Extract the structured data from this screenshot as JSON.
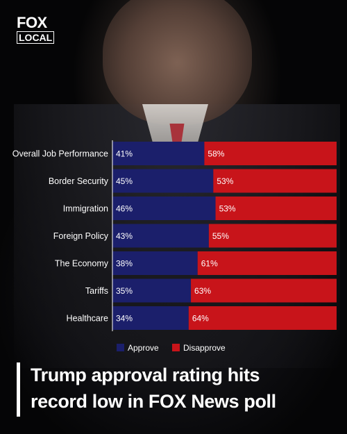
{
  "logo": {
    "line1": "FOX",
    "line2": "LOCAL"
  },
  "headline": {
    "line1": "Trump approval rating hits",
    "line2": "record low in FOX News poll"
  },
  "colors": {
    "approve": "#1b1f6b",
    "disapprove": "#c8141a",
    "text": "#ffffff"
  },
  "chart_data": {
    "type": "bar",
    "orientation": "horizontal",
    "stacked": true,
    "categories": [
      "Overall Job Performance",
      "Border Security",
      "Immigration",
      "Foreign Policy",
      "The Economy",
      "Tariffs",
      "Healthcare"
    ],
    "series": [
      {
        "name": "Approve",
        "values": [
          41,
          45,
          46,
          43,
          38,
          35,
          34
        ],
        "color": "#1b1f6b"
      },
      {
        "name": "Disapprove",
        "values": [
          58,
          53,
          53,
          55,
          61,
          63,
          64
        ],
        "color": "#c8141a"
      }
    ],
    "value_suffix": "%",
    "xlim": [
      0,
      100
    ],
    "legend": {
      "position": "bottom"
    },
    "grid": false
  }
}
